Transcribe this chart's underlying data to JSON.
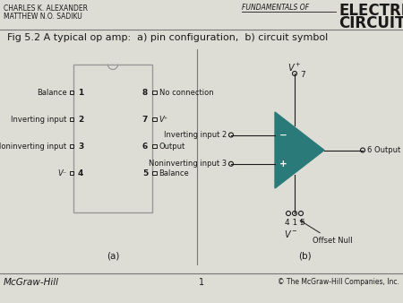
{
  "title": "Fig 5.2 A typical op amp:  a) pin configuration,  b) circuit symbol",
  "header_left_line1": "CHARLES K. ALEXANDER",
  "header_left_line2": "MATTHEW N.O. SADIKU",
  "header_right_pre": "FUNDAMENTALS OF",
  "header_right_line2": "ELECTRIC",
  "header_right_line3": "CIRCUITS",
  "footer_left": "McGraw-Hill",
  "footer_center": "1",
  "footer_right": "© The McGraw-Hill Companies, Inc.",
  "bg_color": "#deddd5",
  "box_color": "#999999",
  "triangle_color": "#2a7a7a",
  "text_color": "#1a1a1a",
  "divider_color": "#777777",
  "pin_labels_left": [
    "Balance",
    "Inverting input",
    "Noninverting input",
    "V⁻"
  ],
  "pin_labels_right": [
    "No connection",
    "V⁺",
    "Output",
    "Balance"
  ],
  "pin_nums_left": [
    "1",
    "2",
    "3",
    "4"
  ],
  "pin_nums_right": [
    "8",
    "7",
    "6",
    "5"
  ]
}
